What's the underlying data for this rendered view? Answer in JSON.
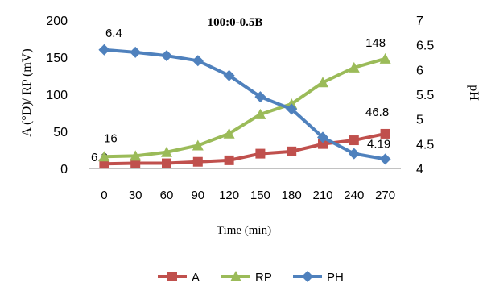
{
  "chart_data": {
    "type": "line",
    "title": "100:0-0.5B",
    "xlabel": "Time (min)",
    "ylabel_left": "A (°D)/ RP (mV)",
    "ylabel_right": "pH",
    "categories": [
      "0",
      "30",
      "60",
      "90",
      "120",
      "150",
      "180",
      "210",
      "240",
      "270"
    ],
    "ylim_left": [
      0,
      200
    ],
    "yticks_left": [
      "0",
      "50",
      "100",
      "150",
      "200"
    ],
    "ylim_right": [
      4,
      7
    ],
    "yticks_right": [
      "4",
      "4.5",
      "5",
      "5.5",
      "6",
      "6.5",
      "7"
    ],
    "grid": false,
    "legend": "bottom",
    "series": [
      {
        "name": "A",
        "axis": "left",
        "color": "#c0504d",
        "marker": "square",
        "values": [
          6.3,
          7,
          7,
          9,
          11,
          20,
          23,
          33,
          38,
          46.8
        ],
        "labels": [
          {
            "index": 0,
            "text": "6.3"
          },
          {
            "index": 9,
            "text": "46.8"
          }
        ]
      },
      {
        "name": "RP",
        "axis": "left",
        "color": "#9bbb59",
        "marker": "triangle",
        "values": [
          16,
          17,
          22,
          31,
          47,
          73,
          87,
          116,
          136,
          148
        ],
        "labels": [
          {
            "index": 0,
            "text": "16"
          },
          {
            "index": 9,
            "text": "148"
          }
        ]
      },
      {
        "name": "PH",
        "axis": "right",
        "color": "#4f81bd",
        "marker": "diamond",
        "values": [
          6.4,
          6.35,
          6.28,
          6.18,
          5.88,
          5.45,
          5.2,
          4.63,
          4.3,
          4.19
        ],
        "labels": [
          {
            "index": 0,
            "text": "6.4"
          },
          {
            "index": 9,
            "text": "4.19"
          }
        ]
      }
    ]
  }
}
